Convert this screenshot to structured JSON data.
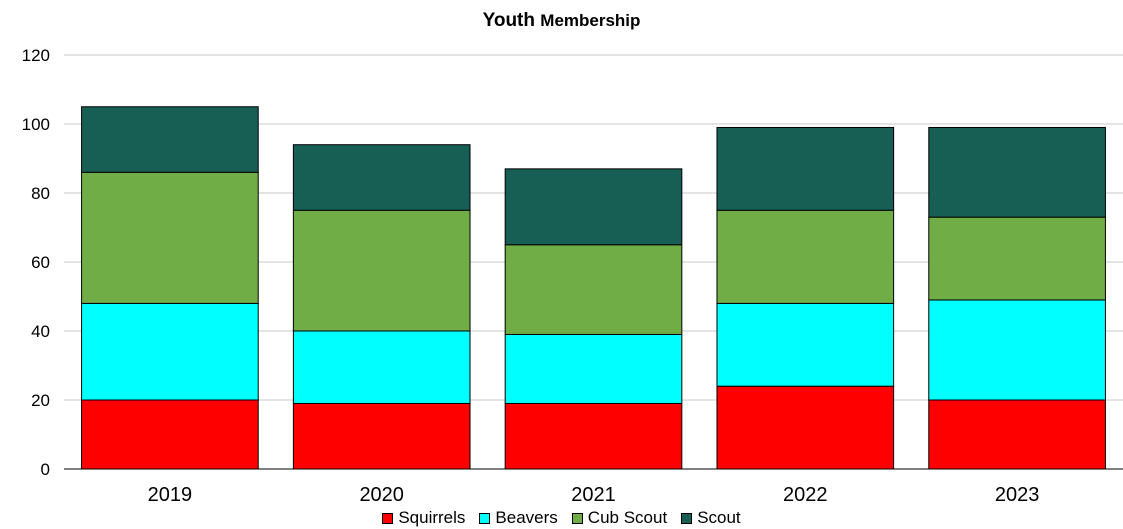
{
  "chart_data": {
    "type": "bar",
    "stacked": true,
    "title_part1": "Youth",
    "title_part2": "Membership",
    "categories": [
      "2019",
      "2020",
      "2021",
      "2022",
      "2023"
    ],
    "series": [
      {
        "name": "Squirrels",
        "color": "#ff0000",
        "values": [
          20,
          19,
          19,
          24,
          20
        ]
      },
      {
        "name": "Beavers",
        "color": "#00ffff",
        "values": [
          28,
          21,
          20,
          24,
          29
        ]
      },
      {
        "name": "Cub Scout",
        "color": "#70ad47",
        "values": [
          38,
          35,
          26,
          27,
          24
        ]
      },
      {
        "name": "Scout",
        "color": "#175e54",
        "values": [
          19,
          19,
          22,
          24,
          26
        ]
      }
    ],
    "ylim": [
      0,
      120
    ],
    "yticks": [
      0,
      20,
      40,
      60,
      80,
      100,
      120
    ],
    "grid": true,
    "legend_position": "bottom",
    "xlabel": "",
    "ylabel": ""
  }
}
